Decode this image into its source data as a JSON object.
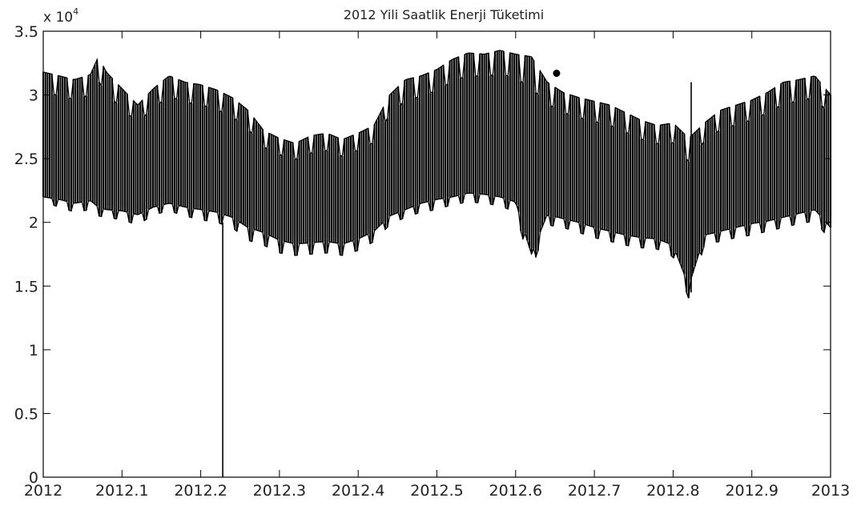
{
  "chart_data": {
    "type": "line",
    "title": "2012 Yili Saatlik Enerji Tüketimi",
    "xlabel": "",
    "ylabel": "",
    "y_multiplier": {
      "base": "x 10",
      "exponent": "4"
    },
    "xlim": [
      2012,
      2013
    ],
    "ylim": [
      0,
      35000
    ],
    "x_ticks": [
      2012,
      2012.1,
      2012.2,
      2012.3,
      2012.4,
      2012.5,
      2012.6,
      2012.7,
      2012.8,
      2012.9,
      2013
    ],
    "x_tick_labels": [
      "2012",
      "2012.1",
      "2012.2",
      "2012.3",
      "2012.4",
      "2012.5",
      "2012.6",
      "2012.7",
      "2012.8",
      "2012.9",
      "2013"
    ],
    "y_ticks": [
      0,
      5000,
      10000,
      15000,
      20000,
      25000,
      30000,
      35000
    ],
    "y_tick_labels": [
      "0",
      "0.5",
      "1",
      "1.5",
      "2",
      "2.5",
      "3",
      "3.5"
    ],
    "grid": false,
    "line_color": "#000000",
    "series": [
      {
        "x": [
          2012.0,
          2012.02,
          2012.04,
          2012.06,
          2012.07,
          2012.08,
          2012.1,
          2012.12,
          2012.14,
          2012.16,
          2012.18,
          2012.2,
          2012.22,
          2012.24,
          2012.26,
          2012.28,
          2012.3,
          2012.32,
          2012.34,
          2012.36,
          2012.38,
          2012.4,
          2012.42,
          2012.44,
          2012.46,
          2012.48,
          2012.5,
          2012.52,
          2012.54,
          2012.56,
          2012.58,
          2012.6,
          2012.62,
          2012.64,
          2012.66,
          2012.68,
          2012.7,
          2012.72,
          2012.74,
          2012.76,
          2012.78,
          2012.8,
          2012.82,
          2012.84,
          2012.86,
          2012.88,
          2012.9,
          2012.92,
          2012.94,
          2012.96,
          2012.98,
          2013.0
        ],
        "daily_max": [
          31800,
          31500,
          31200,
          31600,
          33000,
          31800,
          30500,
          29200,
          30500,
          31500,
          31000,
          30800,
          30400,
          29800,
          28800,
          27200,
          26600,
          26200,
          26800,
          27000,
          26500,
          27000,
          27600,
          30000,
          31200,
          31500,
          32000,
          32800,
          33300,
          33200,
          33500,
          33200,
          33000,
          31000,
          30200,
          29800,
          29500,
          29200,
          28600,
          28000,
          27600,
          27800,
          26600,
          27800,
          28800,
          29200,
          29600,
          30200,
          31000,
          31200,
          31500,
          30000
        ],
        "daily_min": [
          21600,
          21200,
          20800,
          21000,
          20500,
          20400,
          20200,
          19800,
          20600,
          20900,
          20500,
          20200,
          20000,
          19600,
          18600,
          18200,
          17600,
          17400,
          17500,
          17600,
          17400,
          17800,
          18500,
          19800,
          20400,
          20800,
          21000,
          21400,
          21600,
          21500,
          21300,
          20800,
          16300,
          19800,
          19600,
          19200,
          18800,
          18500,
          18200,
          18000,
          17900,
          17300,
          14000,
          18300,
          18500,
          18800,
          19000,
          19300,
          19600,
          19900,
          20100,
          18600
        ],
        "weekly_valley": [
          22000,
          21800,
          21500,
          21700,
          21200,
          21000,
          20900,
          20600,
          21200,
          21500,
          21200,
          21000,
          20800,
          20400,
          19600,
          19200,
          18600,
          18300,
          18400,
          18500,
          18300,
          18700,
          19300,
          20500,
          21000,
          21500,
          21800,
          22000,
          22300,
          22200,
          22000,
          21600,
          17500,
          20600,
          20300,
          20000,
          19600,
          19300,
          19000,
          18800,
          18700,
          18200,
          15000,
          19000,
          19300,
          19600,
          19900,
          20100,
          20400,
          20700,
          21000,
          19600
        ]
      }
    ],
    "annotations": [
      {
        "type": "spike",
        "x": 2012.228,
        "y_from": 0,
        "y_to": 20000
      },
      {
        "type": "spike",
        "x": 2012.823,
        "y_from": 14500,
        "y_to": 31000
      },
      {
        "type": "marker",
        "x": 2012.652,
        "y": 31700
      }
    ]
  }
}
